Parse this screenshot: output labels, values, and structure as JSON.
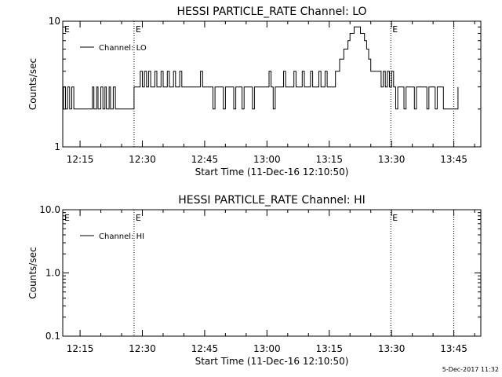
{
  "chart_data": [
    {
      "type": "line",
      "title": "HESSI PARTICLE_RATE Channel: LO",
      "ylabel": "Counts/sec",
      "xlabel": "Start Time (11-Dec-16 12:10:50)",
      "y_scale": "log",
      "ylim": [
        1,
        10
      ],
      "y_ticks": [
        "1",
        "10"
      ],
      "x_range": [
        "12:10:50",
        "13:51:30"
      ],
      "x_ticks": [
        "12:15",
        "12:30",
        "12:45",
        "13:00",
        "13:15",
        "13:30",
        "13:45"
      ],
      "legend": {
        "placement": "top-left",
        "entries": [
          "Channel: LO"
        ]
      },
      "event_markers": [
        {
          "time": "12:28:00",
          "label": "E"
        },
        {
          "time": "13:29:50",
          "label": "E"
        },
        {
          "time": "13:45:00",
          "label": ""
        }
      ],
      "series": [
        {
          "name": "Channel: LO",
          "points": [
            [
              "12:10:50",
              2
            ],
            [
              "12:11:00",
              3
            ],
            [
              "12:11:30",
              2
            ],
            [
              "12:12:00",
              3
            ],
            [
              "12:12:30",
              2
            ],
            [
              "12:13:00",
              3
            ],
            [
              "12:13:30",
              2
            ],
            [
              "12:17:30",
              2
            ],
            [
              "12:18:00",
              3
            ],
            [
              "12:18:20",
              2
            ],
            [
              "12:19:00",
              3
            ],
            [
              "12:19:20",
              2
            ],
            [
              "12:20:00",
              3
            ],
            [
              "12:20:30",
              2
            ],
            [
              "12:21:00",
              3
            ],
            [
              "12:21:20",
              2
            ],
            [
              "12:22:00",
              3
            ],
            [
              "12:22:20",
              2
            ],
            [
              "12:23:00",
              3
            ],
            [
              "12:23:30",
              2
            ],
            [
              "12:27:30",
              2
            ],
            [
              "12:28:00",
              3
            ],
            [
              "12:29:00",
              3
            ],
            [
              "12:29:30",
              4
            ],
            [
              "12:30:00",
              3
            ],
            [
              "12:30:30",
              4
            ],
            [
              "12:31:00",
              3
            ],
            [
              "12:31:30",
              4
            ],
            [
              "12:32:00",
              3
            ],
            [
              "12:33:00",
              4
            ],
            [
              "12:33:30",
              3
            ],
            [
              "12:34:30",
              4
            ],
            [
              "12:35:00",
              3
            ],
            [
              "12:36:00",
              4
            ],
            [
              "12:36:30",
              3
            ],
            [
              "12:37:30",
              4
            ],
            [
              "12:38:00",
              3
            ],
            [
              "12:39:00",
              4
            ],
            [
              "12:39:30",
              3
            ],
            [
              "12:43:30",
              3
            ],
            [
              "12:44:00",
              4
            ],
            [
              "12:44:30",
              3
            ],
            [
              "12:46:30",
              3
            ],
            [
              "12:47:00",
              2
            ],
            [
              "12:47:30",
              3
            ],
            [
              "12:49:00",
              3
            ],
            [
              "12:49:30",
              2
            ],
            [
              "12:50:00",
              3
            ],
            [
              "12:51:30",
              3
            ],
            [
              "12:52:00",
              2
            ],
            [
              "12:52:30",
              3
            ],
            [
              "12:53:30",
              3
            ],
            [
              "12:54:00",
              2
            ],
            [
              "12:54:30",
              3
            ],
            [
              "12:56:00",
              3
            ],
            [
              "12:56:30",
              2
            ],
            [
              "12:57:00",
              3
            ],
            [
              "13:00:00",
              3
            ],
            [
              "13:00:30",
              4
            ],
            [
              "13:01:00",
              3
            ],
            [
              "13:01:30",
              2
            ],
            [
              "13:02:00",
              3
            ],
            [
              "13:03:30",
              3
            ],
            [
              "13:04:00",
              4
            ],
            [
              "13:04:30",
              3
            ],
            [
              "13:06:00",
              3
            ],
            [
              "13:06:30",
              4
            ],
            [
              "13:07:00",
              3
            ],
            [
              "13:08:30",
              4
            ],
            [
              "13:09:00",
              3
            ],
            [
              "13:10:30",
              4
            ],
            [
              "13:11:00",
              3
            ],
            [
              "13:12:30",
              4
            ],
            [
              "13:13:00",
              3
            ],
            [
              "13:14:00",
              4
            ],
            [
              "13:14:30",
              3
            ],
            [
              "13:16:00",
              3
            ],
            [
              "13:16:30",
              4
            ],
            [
              "13:17:00",
              4
            ],
            [
              "13:17:30",
              5
            ],
            [
              "13:18:00",
              5
            ],
            [
              "13:18:30",
              6
            ],
            [
              "13:19:00",
              6
            ],
            [
              "13:19:30",
              7
            ],
            [
              "13:20:00",
              8
            ],
            [
              "13:20:30",
              8
            ],
            [
              "13:21:00",
              9
            ],
            [
              "13:22:00",
              9
            ],
            [
              "13:22:30",
              8
            ],
            [
              "13:23:00",
              8
            ],
            [
              "13:23:30",
              7
            ],
            [
              "13:24:00",
              6
            ],
            [
              "13:24:30",
              5
            ],
            [
              "13:25:00",
              4
            ],
            [
              "13:25:30",
              4
            ],
            [
              "13:27:00",
              4
            ],
            [
              "13:27:30",
              3
            ],
            [
              "13:28:00",
              4
            ],
            [
              "13:28:30",
              3
            ],
            [
              "13:29:00",
              4
            ],
            [
              "13:29:30",
              3
            ],
            [
              "13:30:00",
              4
            ],
            [
              "13:30:30",
              3
            ],
            [
              "13:31:00",
              2
            ],
            [
              "13:31:30",
              3
            ],
            [
              "13:32:30",
              3
            ],
            [
              "13:33:00",
              2
            ],
            [
              "13:33:30",
              3
            ],
            [
              "13:35:00",
              3
            ],
            [
              "13:35:30",
              2
            ],
            [
              "13:36:00",
              3
            ],
            [
              "13:38:00",
              3
            ],
            [
              "13:38:30",
              2
            ],
            [
              "13:39:00",
              3
            ],
            [
              "13:40:00",
              3
            ],
            [
              "13:40:30",
              2
            ],
            [
              "13:41:00",
              3
            ],
            [
              "13:42:00",
              3
            ],
            [
              "13:42:30",
              2
            ],
            [
              "13:45:30",
              2
            ],
            [
              "13:46:00",
              3
            ]
          ]
        }
      ]
    },
    {
      "type": "line",
      "title": "HESSI PARTICLE_RATE Channel: HI",
      "ylabel": "Counts/sec",
      "xlabel": "Start Time (11-Dec-16 12:10:50)",
      "y_scale": "log",
      "ylim": [
        0.1,
        10
      ],
      "y_ticks": [
        "0.1",
        "1.0",
        "10.0"
      ],
      "x_range": [
        "12:10:50",
        "13:51:30"
      ],
      "x_ticks": [
        "12:15",
        "12:30",
        "12:45",
        "13:00",
        "13:15",
        "13:30",
        "13:45"
      ],
      "legend": {
        "placement": "top-left",
        "entries": [
          "Channel: HI"
        ]
      },
      "event_markers": [
        {
          "time": "12:28:00",
          "label": "E"
        },
        {
          "time": "13:29:50",
          "label": "E"
        },
        {
          "time": "13:45:00",
          "label": ""
        }
      ],
      "series": [
        {
          "name": "Channel: HI",
          "points": []
        }
      ]
    }
  ],
  "footer": {
    "timestamp": "5-Dec-2017 11:32"
  }
}
